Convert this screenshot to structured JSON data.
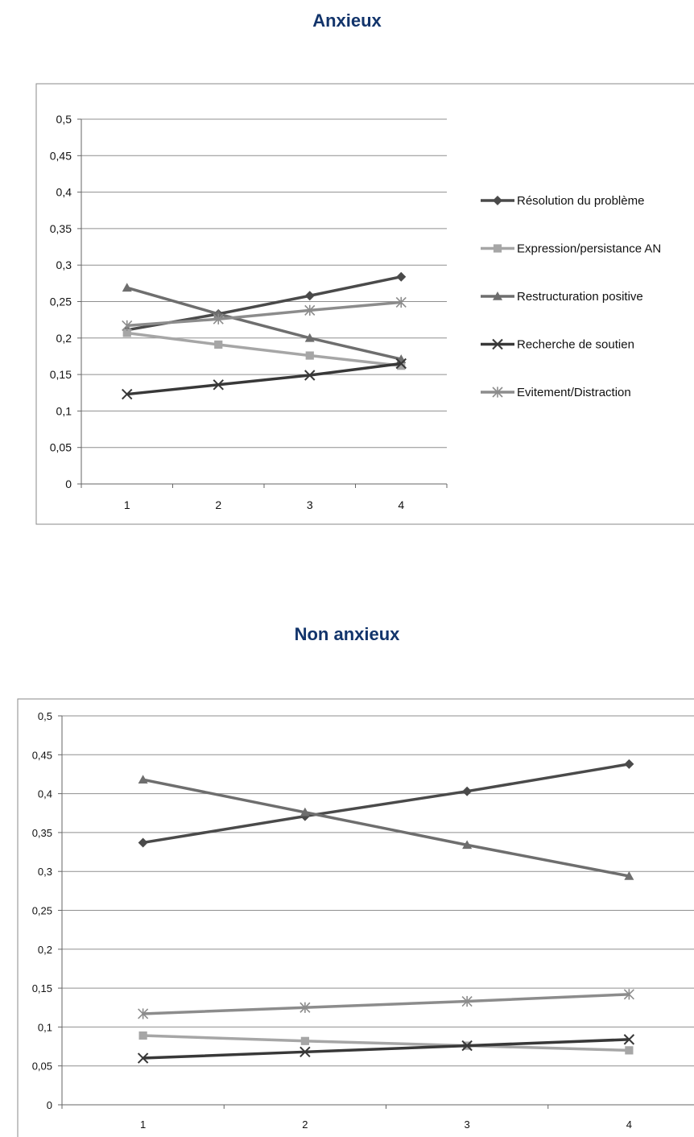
{
  "chart_data": [
    {
      "type": "line",
      "title": "Anxieux",
      "categories": [
        "1",
        "2",
        "3",
        "4"
      ],
      "ylim": [
        0,
        0.5
      ],
      "y_ticks": [
        "0",
        "0,05",
        "0,1",
        "0,15",
        "0,2",
        "0,25",
        "0,3",
        "0,35",
        "0,4",
        "0,45",
        "0,5"
      ],
      "grid": true,
      "legend": "right",
      "series": [
        {
          "name": "Résolution du problème",
          "values": [
            0.211,
            0.233,
            0.258,
            0.284
          ],
          "color": "#4a4a4a",
          "marker": "diamond"
        },
        {
          "name": "Expression/persistance AN",
          "values": [
            0.207,
            0.191,
            0.176,
            0.162
          ],
          "color": "#a6a6a6",
          "marker": "square"
        },
        {
          "name": "Restructuration positive",
          "values": [
            0.269,
            0.233,
            0.2,
            0.171
          ],
          "color": "#6e6e6e",
          "marker": "triangle"
        },
        {
          "name": "Recherche de soutien",
          "values": [
            0.123,
            0.136,
            0.149,
            0.165
          ],
          "color": "#383838",
          "marker": "x"
        },
        {
          "name": "Evitement/Distraction",
          "values": [
            0.217,
            0.226,
            0.238,
            0.249
          ],
          "color": "#8c8c8c",
          "marker": "star"
        }
      ]
    },
    {
      "type": "line",
      "title": "Non anxieux",
      "categories": [
        "1",
        "2",
        "3",
        "4"
      ],
      "ylim": [
        0,
        0.5
      ],
      "y_ticks": [
        "0",
        "0,05",
        "0,1",
        "0,15",
        "0,2",
        "0,25",
        "0,3",
        "0,35",
        "0,4",
        "0,45",
        "0,5"
      ],
      "grid": true,
      "series": [
        {
          "values": [
            0.337,
            0.371,
            0.403,
            0.438
          ],
          "color": "#4a4a4a",
          "marker": "diamond"
        },
        {
          "values": [
            0.089,
            0.082,
            0.076,
            0.07
          ],
          "color": "#a6a6a6",
          "marker": "square"
        },
        {
          "values": [
            0.418,
            0.376,
            0.334,
            0.294
          ],
          "color": "#6e6e6e",
          "marker": "triangle"
        },
        {
          "values": [
            0.06,
            0.068,
            0.076,
            0.084
          ],
          "color": "#383838",
          "marker": "x"
        },
        {
          "values": [
            0.117,
            0.125,
            0.133,
            0.142
          ],
          "color": "#8c8c8c",
          "marker": "star"
        }
      ]
    }
  ]
}
